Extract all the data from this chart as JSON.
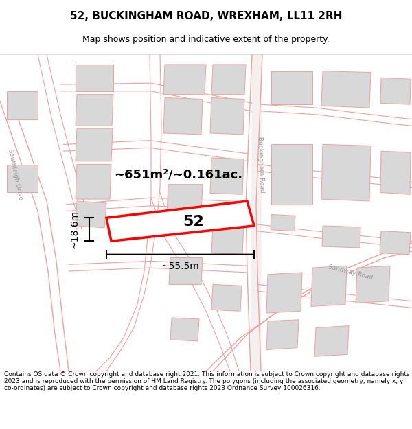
{
  "title": "52, BUCKINGHAM ROAD, WREXHAM, LL11 2RH",
  "subtitle": "Map shows position and indicative extent of the property.",
  "footer": "Contains OS data © Crown copyright and database right 2021. This information is subject to Crown copyright and database rights 2023 and is reproduced with the permission of HM Land Registry. The polygons (including the associated geometry, namely x, y co-ordinates) are subject to Crown copyright and database rights 2023 Ordnance Survey 100026316.",
  "plot_color": "#ff0000",
  "building_fill": "#d8d8d8",
  "building_edge": "#f0a0a0",
  "road_line_color": "#f0a0a0",
  "road_fill": "#f8f0f0",
  "area_text": "~651m²/~0.161ac.",
  "width_text": "~55.5m",
  "height_text": "~18.6m",
  "number_text": "52",
  "road_label_buckingham": "Buckingham Road",
  "road_label_sandway": "Sandway Road",
  "road_label_southleigh": "Southleigh Drive",
  "title_fontsize": 11,
  "subtitle_fontsize": 9,
  "footer_fontsize": 6.5
}
